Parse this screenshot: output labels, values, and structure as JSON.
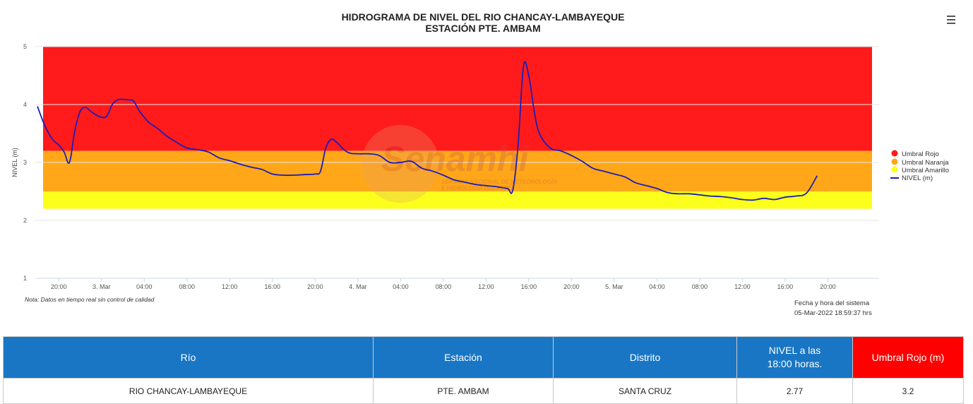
{
  "chart": {
    "title_line1": "HIDROGRAMA DE NIVEL DEL RIO CHANCAY-LAMBAYEQUE",
    "title_line2": "ESTACIÓN PTE. AMBAM",
    "note": "Nota: Datos en tiempo real sin control de calidad",
    "system_time_label": "Fecha y hora del sistema",
    "system_time_value": "05-Mar-2022 18:59:37 hrs",
    "watermark_brand": "Senamhi",
    "watermark_line1": "SERVICIO NACIONAL DE METEOROLOGÍA",
    "watermark_line2": "E HIDROLOGÍA DEL PERÚ",
    "menu_icon": "hamburger-menu-icon"
  },
  "chart_data": {
    "type": "line",
    "title": "HIDROGRAMA DE NIVEL DEL RIO CHANCAY-LAMBAYEQUE",
    "subtitle": "ESTACIÓN PTE. AMBAM",
    "ylabel": "NIVEL (m)",
    "xlabel": "",
    "ylim": [
      1,
      5
    ],
    "yticks": [
      "1",
      "2",
      "3",
      "4",
      "5"
    ],
    "xlim_hours": [
      -6.2,
      72.8
    ],
    "xticks": [
      {
        "hour": -4,
        "label": "20:00"
      },
      {
        "hour": 0,
        "label": "3. Mar"
      },
      {
        "hour": 4,
        "label": "04:00"
      },
      {
        "hour": 8,
        "label": "08:00"
      },
      {
        "hour": 12,
        "label": "12:00"
      },
      {
        "hour": 16,
        "label": "16:00"
      },
      {
        "hour": 20,
        "label": "20:00"
      },
      {
        "hour": 24,
        "label": "4. Mar"
      },
      {
        "hour": 28,
        "label": "04:00"
      },
      {
        "hour": 32,
        "label": "08:00"
      },
      {
        "hour": 36,
        "label": "12:00"
      },
      {
        "hour": 40,
        "label": "16:00"
      },
      {
        "hour": 44,
        "label": "20:00"
      },
      {
        "hour": 48,
        "label": "5. Mar"
      },
      {
        "hour": 52,
        "label": "04:00"
      },
      {
        "hour": 56,
        "label": "08:00"
      },
      {
        "hour": 60,
        "label": "12:00"
      },
      {
        "hour": 64,
        "label": "16:00"
      },
      {
        "hour": 68,
        "label": "20:00"
      }
    ],
    "grid": true,
    "legend_position": "right",
    "bands": [
      {
        "name": "Umbral Rojo",
        "from": 3.2,
        "to": 5.0,
        "color": "#ff1b1b"
      },
      {
        "name": "Umbral Naranja",
        "from": 2.5,
        "to": 3.2,
        "color": "#ffa718"
      },
      {
        "name": "Umbral Amarillo",
        "from": 2.2,
        "to": 2.5,
        "color": "#fbff1b"
      }
    ],
    "series": [
      {
        "name": "NIVEL (m)",
        "color": "#1c1cb8",
        "x_hours": [
          -6,
          -5.5,
          -5,
          -4.5,
          -4,
          -3.5,
          -3,
          -2.5,
          -2,
          -1.5,
          -1,
          -0.5,
          0,
          0.5,
          1,
          1.5,
          2,
          2.5,
          3,
          3.5,
          4,
          4.5,
          5,
          5.5,
          6,
          7,
          8,
          9,
          10,
          11,
          12,
          13,
          14,
          15,
          16,
          17,
          18,
          19,
          20,
          20.5,
          21,
          21.5,
          22,
          23,
          24,
          25,
          26,
          27,
          28,
          29,
          30,
          31,
          32,
          33,
          34,
          35,
          36,
          37,
          38,
          38.5,
          39,
          39.5,
          40,
          40.5,
          41,
          42,
          43,
          44,
          45,
          46,
          47,
          48,
          49,
          50,
          51,
          52,
          53,
          54,
          55,
          56,
          57,
          58,
          59,
          60,
          61,
          62,
          63,
          64,
          65,
          66,
          67
        ],
        "values": [
          3.97,
          3.72,
          3.52,
          3.38,
          3.3,
          3.18,
          3.0,
          3.55,
          3.88,
          3.95,
          3.88,
          3.82,
          3.78,
          3.8,
          4.0,
          4.08,
          4.09,
          4.08,
          4.06,
          3.9,
          3.78,
          3.68,
          3.62,
          3.55,
          3.47,
          3.35,
          3.25,
          3.22,
          3.18,
          3.08,
          3.03,
          2.97,
          2.92,
          2.88,
          2.8,
          2.78,
          2.78,
          2.79,
          2.8,
          2.85,
          3.25,
          3.4,
          3.35,
          3.18,
          3.15,
          3.15,
          3.12,
          3.0,
          3.0,
          3.02,
          2.9,
          2.85,
          2.78,
          2.7,
          2.66,
          2.62,
          2.6,
          2.58,
          2.55,
          2.52,
          3.3,
          4.65,
          4.5,
          3.9,
          3.5,
          3.25,
          3.2,
          3.12,
          3.02,
          2.9,
          2.85,
          2.8,
          2.75,
          2.65,
          2.6,
          2.55,
          2.48,
          2.46,
          2.46,
          2.44,
          2.42,
          2.41,
          2.39,
          2.36,
          2.35,
          2.38,
          2.36,
          2.4,
          2.42,
          2.47,
          2.77
        ]
      }
    ]
  },
  "table": {
    "headers": {
      "rio": "Río",
      "estacion": "Estación",
      "distrito": "Distrito",
      "nivel_line1": "NIVEL a las",
      "nivel_line2": "18:00 horas.",
      "umbral": "Umbral Rojo (m)"
    },
    "row": {
      "rio": "RIO CHANCAY-LAMBAYEQUE",
      "estacion": "PTE. AMBAM",
      "distrito": "SANTA CRUZ",
      "nivel": "2.77",
      "umbral": "3.2"
    }
  }
}
